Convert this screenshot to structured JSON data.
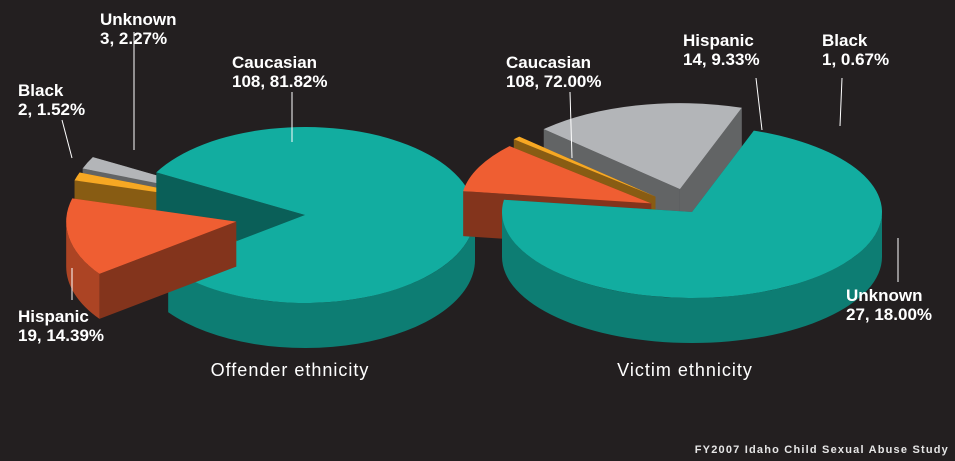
{
  "chart_data": [
    {
      "type": "pie",
      "title": "Offender ethnicity",
      "slices": [
        {
          "name": "Caucasian",
          "value": 108,
          "percent": "81.82%",
          "color": "#12ada0"
        },
        {
          "name": "Hispanic",
          "value": 19,
          "percent": "14.39%",
          "color": "#ef5e32"
        },
        {
          "name": "Black",
          "value": 2,
          "percent": "1.52%",
          "color": "#f7a823"
        },
        {
          "name": "Unknown",
          "value": 3,
          "percent": "2.27%",
          "color": "#b3b5b8"
        }
      ]
    },
    {
      "type": "pie",
      "title": "Victim ethnicity",
      "slices": [
        {
          "name": "Caucasian",
          "value": 108,
          "percent": "72.00%",
          "color": "#12ada0"
        },
        {
          "name": "Hispanic",
          "value": 14,
          "percent": "9.33%",
          "color": "#ef5e32"
        },
        {
          "name": "Black",
          "value": 1,
          "percent": "0.67%",
          "color": "#f7a823"
        },
        {
          "name": "Unknown",
          "value": 27,
          "percent": "18.00%",
          "color": "#b3b5b8"
        }
      ]
    }
  ],
  "labels": {
    "offender": {
      "caucasian": "Caucasian",
      "caucasian_value": "108, 81.82%",
      "hispanic": "Hispanic",
      "hispanic_value": "19, 14.39%",
      "black": "Black",
      "black_value": "2, 1.52%",
      "unknown": "Unknown",
      "unknown_value": "3, 2.27%"
    },
    "victim": {
      "caucasian": "Caucasian",
      "caucasian_value": "108, 72.00%",
      "hispanic": "Hispanic",
      "hispanic_value": "14, 9.33%",
      "black": "Black",
      "black_value": "1, 0.67%",
      "unknown": "Unknown",
      "unknown_value": "27, 18.00%"
    }
  },
  "captions": {
    "offender": "Offender ethnicity",
    "victim": "Victim ethnicity"
  },
  "source": "FY2007 Idaho Child Sexual Abuse Study"
}
